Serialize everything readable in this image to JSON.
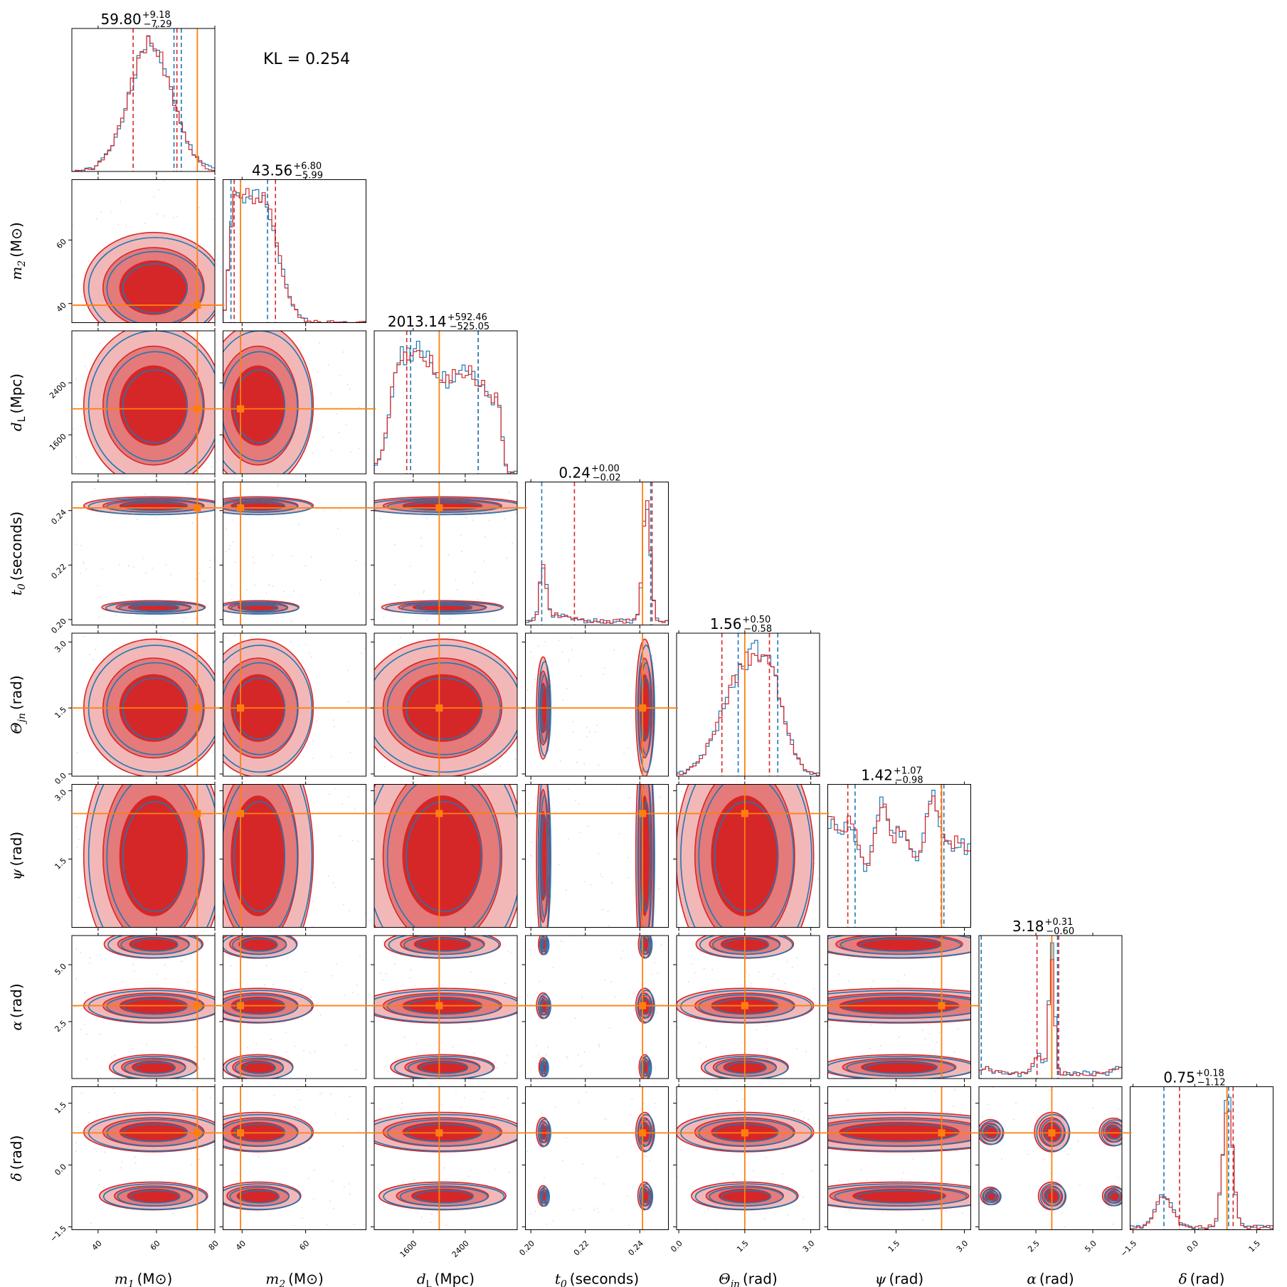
{
  "kl_text": "KL = 0.254",
  "colors": {
    "red": "#d62728",
    "blue": "#1f77b4",
    "orange": "#ff7f0e",
    "red_fill_light": "#f2b8b8",
    "red_fill_mid": "#e47a7a",
    "red_fill_dark": "#d62728"
  },
  "chart_data": {
    "type": "scatter",
    "subtype": "corner",
    "parameters": [
      {
        "key": "m1",
        "label": "m",
        "sub": "1",
        "unit": "(M⊙)",
        "range": [
          31,
          80
        ],
        "ticks": [
          40,
          60,
          80
        ],
        "tick_labels": [
          "40",
          "60",
          "80"
        ],
        "truth": 74,
        "median": 59.8,
        "err_plus": 9.18,
        "err_minus": 7.29,
        "title_main": "59.80",
        "title_plus": "+9.18",
        "title_minus": "−7.29",
        "dist": "m1"
      },
      {
        "key": "m2",
        "label": "m",
        "sub": "2",
        "unit": "(M⊙)",
        "range": [
          34,
          79
        ],
        "ticks": [
          40,
          60
        ],
        "tick_labels": [
          "40",
          "60"
        ],
        "truth": 39.5,
        "median": 43.56,
        "err_plus": 6.8,
        "err_minus": 5.99,
        "title_main": "43.56",
        "title_plus": "+6.80",
        "title_minus": "−5.99",
        "dist": "m2"
      },
      {
        "key": "dL",
        "label": "d",
        "sub": "L",
        "unit": "(Mpc)",
        "range": [
          1000,
          3200
        ],
        "ticks": [
          1600,
          2400
        ],
        "tick_labels": [
          "1600",
          "2400"
        ],
        "truth": 2000,
        "median": 2013.14,
        "err_plus": 592.46,
        "err_minus": 525.05,
        "title_main": "2013.14",
        "title_plus": "+592.46",
        "title_minus": "−525.05",
        "dist": "dl"
      },
      {
        "key": "t0",
        "label": "t",
        "sub": "0",
        "unit": "(seconds)",
        "range": [
          0.198,
          0.2505
        ],
        "ticks": [
          0.2,
          0.22,
          0.24
        ],
        "tick_labels": [
          "0.20",
          "0.22",
          "0.24"
        ],
        "truth": 0.241,
        "median": 0.24,
        "err_plus": 0.0,
        "err_minus": 0.02,
        "title_main": "0.24",
        "title_plus": "+0.00",
        "title_minus": "−0.02",
        "dist": "t0"
      },
      {
        "key": "theta",
        "label": "Θ",
        "sub": "jn",
        "unit": "(rad)",
        "range": [
          -0.05,
          3.2
        ],
        "ticks": [
          0.0,
          1.5,
          3.0
        ],
        "tick_labels": [
          "0.0",
          "1.5",
          "3.0"
        ],
        "truth": 1.5,
        "median": 1.56,
        "err_plus": 0.5,
        "err_minus": 0.58,
        "title_main": "1.56",
        "title_plus": "+0.50",
        "title_minus": "−0.58",
        "dist": "theta"
      },
      {
        "key": "psi",
        "label": "ψ",
        "sub": "",
        "unit": "(rad)",
        "range": [
          0.0,
          3.14
        ],
        "ticks": [
          1.5,
          3.0
        ],
        "tick_labels": [
          "1.5",
          "3.0"
        ],
        "truth": 2.5,
        "median": 1.42,
        "err_plus": 1.07,
        "err_minus": 0.98,
        "title_main": "1.42",
        "title_plus": "+1.07",
        "title_minus": "−0.98",
        "dist": "psi"
      },
      {
        "key": "alpha",
        "label": "α",
        "sub": "",
        "unit": "(rad)",
        "range": [
          0.0,
          6.28
        ],
        "ticks": [
          2.5,
          5.0
        ],
        "tick_labels": [
          "2.5",
          "5.0"
        ],
        "truth": 3.2,
        "median": 3.18,
        "err_plus": 0.31,
        "err_minus": 0.6,
        "title_main": "3.18",
        "title_plus": "+0.31",
        "title_minus": "−0.60",
        "dist": "alpha"
      },
      {
        "key": "delta",
        "label": "δ",
        "sub": "",
        "unit": "(rad)",
        "range": [
          -1.57,
          1.9
        ],
        "ticks": [
          -1.5,
          0.0,
          1.5
        ],
        "tick_labels": [
          "−1.5",
          "0.0",
          "1.5"
        ],
        "truth": 0.78,
        "median": 0.75,
        "err_plus": 0.18,
        "err_minus": 1.12,
        "title_main": "0.75",
        "title_plus": "+0.18",
        "title_minus": "−1.12",
        "dist": "delta"
      }
    ],
    "quantile_lines": {
      "red": [
        [
          52,
          67
        ],
        [
          37.5,
          50.5
        ],
        [
          1500,
          2600
        ],
        [
          0.216,
          0.2445
        ],
        [
          0.98,
          2.06
        ],
        [
          0.44,
          2.49
        ],
        [
          2.55,
          3.5
        ],
        [
          -0.37,
          0.93
        ]
      ],
      "blue": [
        [
          66,
          68.5
        ],
        [
          36.5,
          48
        ],
        [
          1560,
          2600
        ],
        [
          0.204,
          0.244
        ],
        [
          1.35,
          2.25
        ],
        [
          0.6,
          2.55
        ],
        [
          0.1,
          3.45
        ],
        [
          -0.75,
          0.82
        ]
      ]
    },
    "series": [
      {
        "name": "red",
        "color": "#d62728"
      },
      {
        "name": "blue",
        "color": "#1f77b4"
      }
    ]
  }
}
